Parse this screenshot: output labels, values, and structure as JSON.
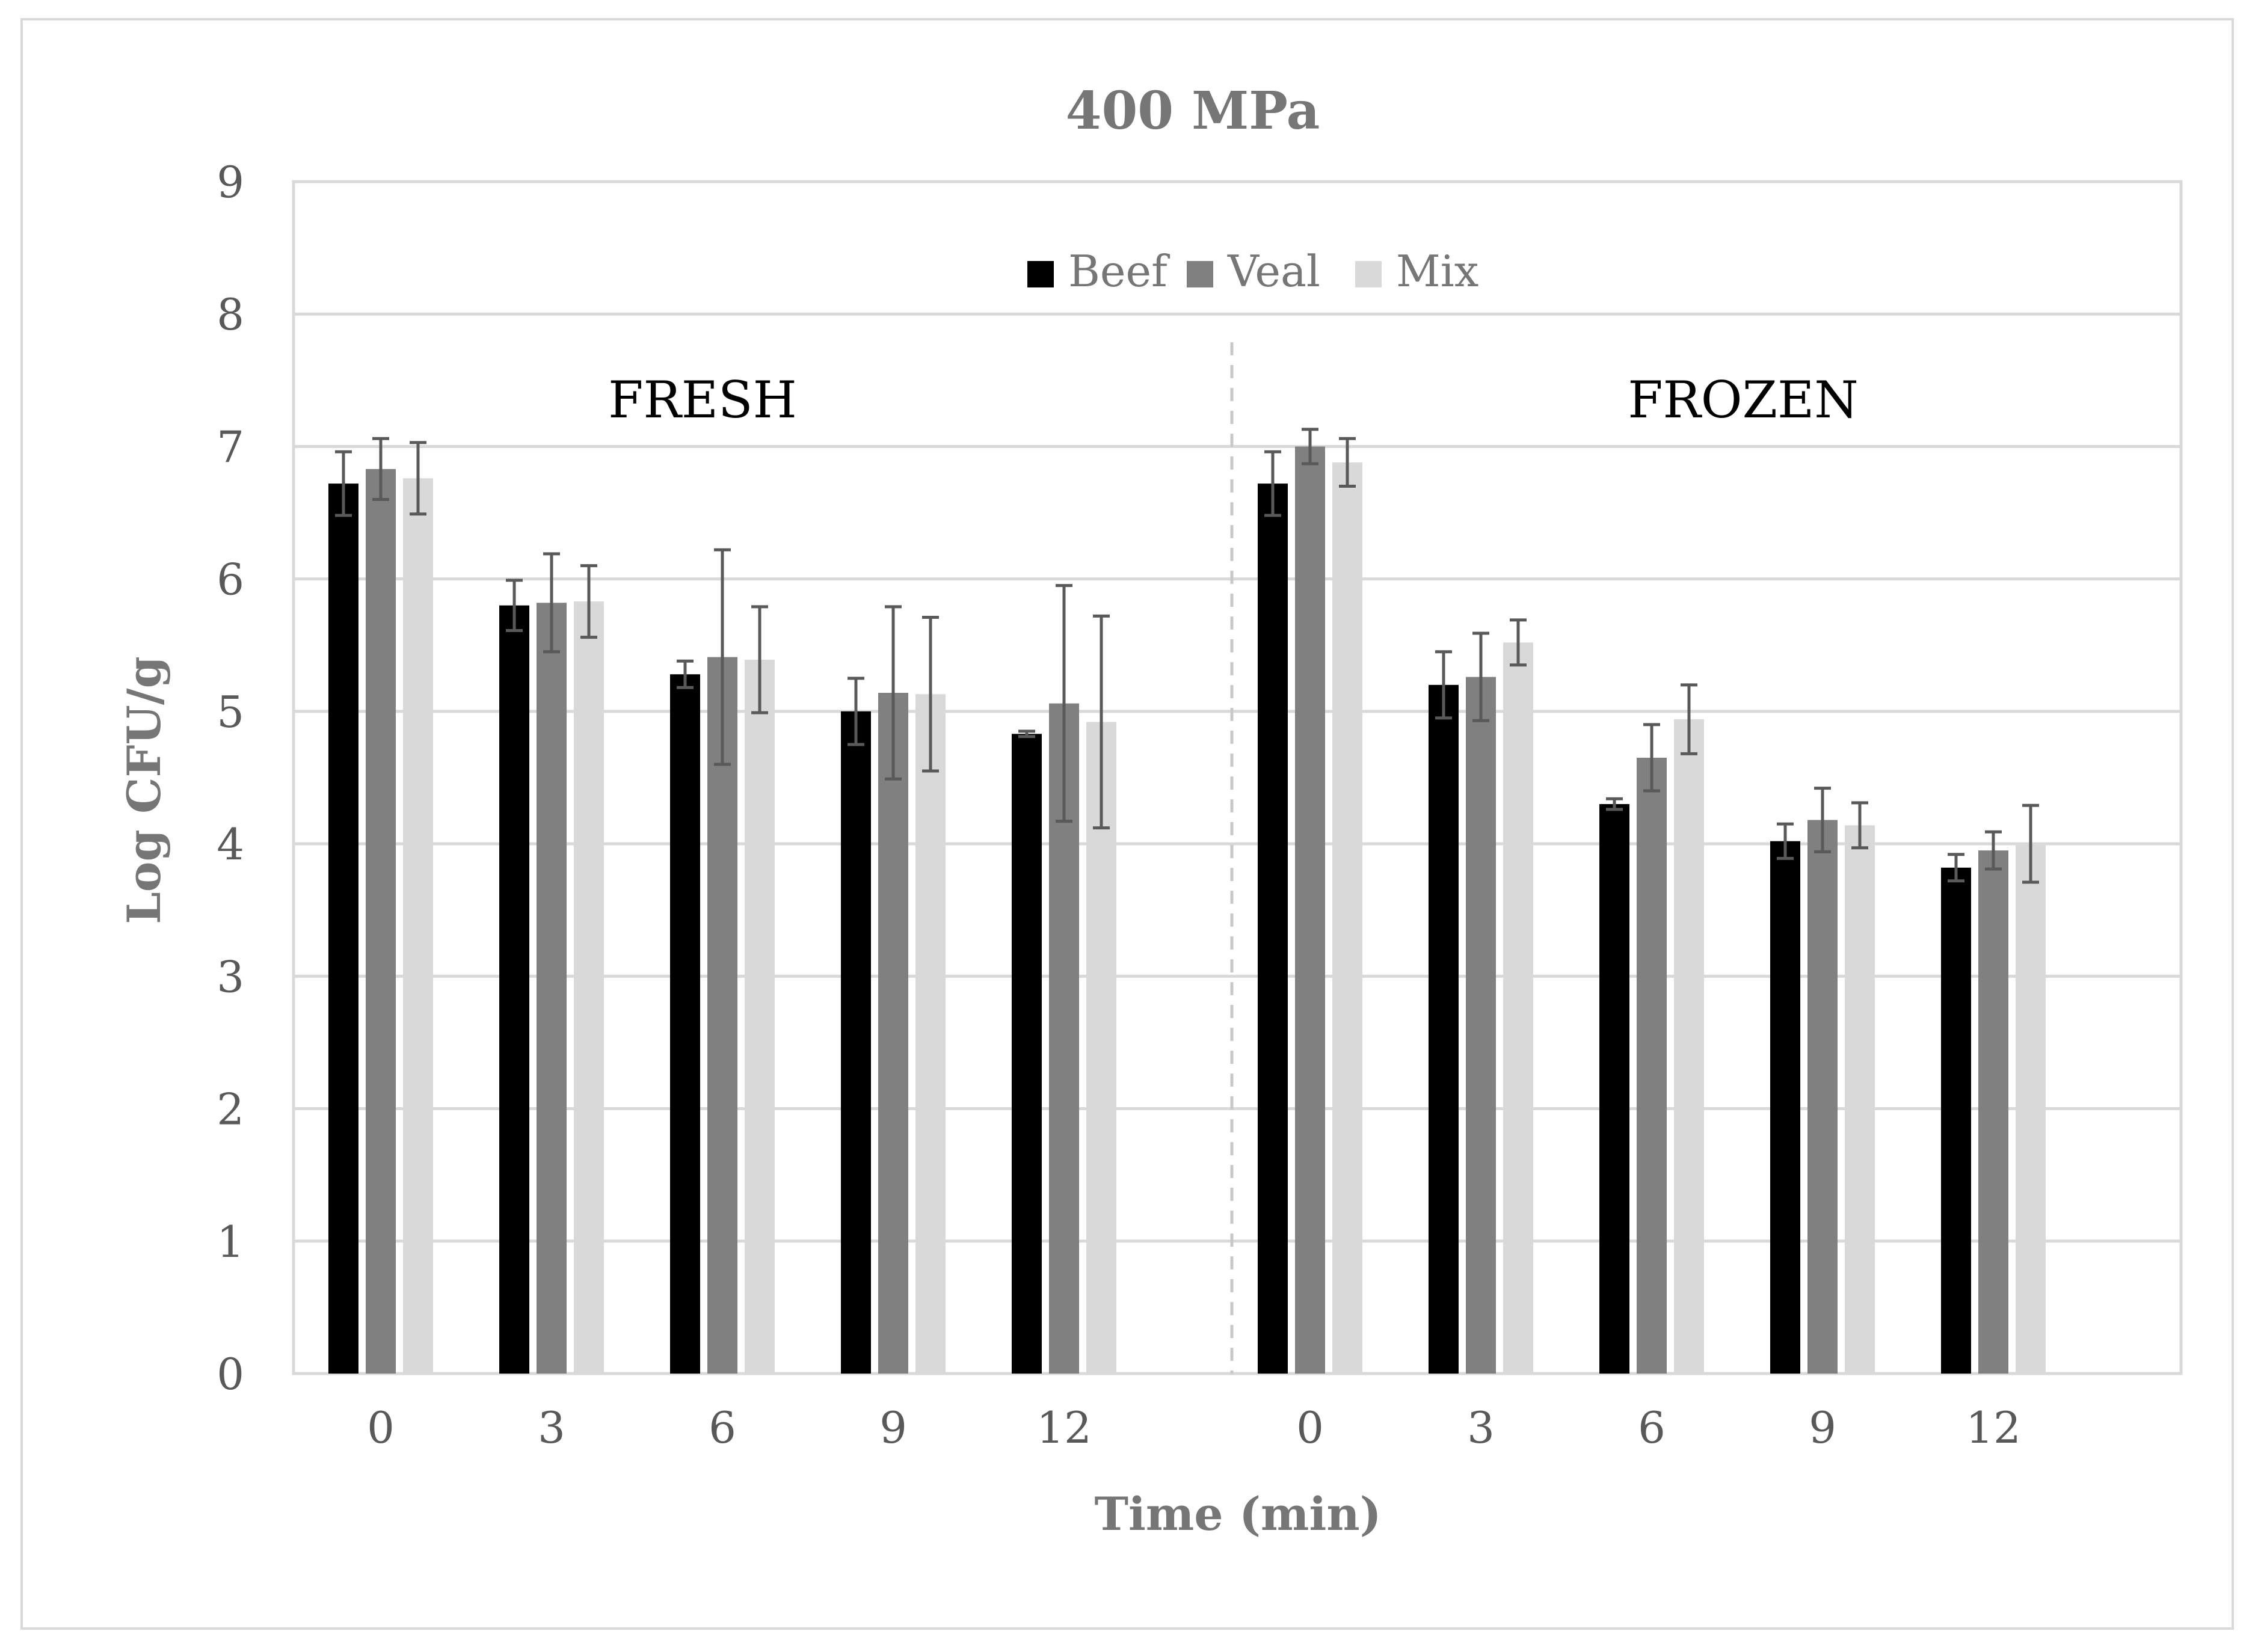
{
  "chart_data": {
    "type": "bar",
    "title": "400 MPa",
    "xlabel": "Time (min)",
    "ylabel": "Log CFU/g",
    "ylim": [
      0,
      9
    ],
    "yticks": [
      "0",
      "1",
      "2",
      "3",
      "4",
      "5",
      "6",
      "7",
      "8",
      "9"
    ],
    "grid": true,
    "legend_position": "top-center",
    "groups": [
      {
        "label": "FRESH",
        "categories": [
          "0",
          "3",
          "6",
          "9",
          "12"
        ],
        "series": [
          {
            "name": "Beef",
            "values": [
              6.72,
              5.8,
              5.28,
              5.0,
              4.83
            ],
            "errors": [
              0.24,
              0.19,
              0.1,
              0.25,
              0.02
            ]
          },
          {
            "name": "Veal",
            "values": [
              6.83,
              5.82,
              5.41,
              5.14,
              5.06
            ],
            "errors": [
              0.23,
              0.37,
              0.81,
              0.65,
              0.89
            ]
          },
          {
            "name": "Mix",
            "values": [
              6.76,
              5.83,
              5.39,
              5.13,
              4.92
            ],
            "errors": [
              0.27,
              0.27,
              0.4,
              0.58,
              0.8
            ]
          }
        ]
      },
      {
        "label": "FROZEN",
        "categories": [
          "0",
          "3",
          "6",
          "9",
          "12"
        ],
        "series": [
          {
            "name": "Beef",
            "values": [
              6.72,
              5.2,
              4.3,
              4.02,
              3.82
            ],
            "errors": [
              0.24,
              0.25,
              0.04,
              0.13,
              0.1
            ]
          },
          {
            "name": "Veal",
            "values": [
              7.0,
              5.26,
              4.65,
              4.18,
              3.95
            ],
            "errors": [
              0.13,
              0.33,
              0.25,
              0.24,
              0.14
            ]
          },
          {
            "name": "Mix",
            "values": [
              6.88,
              5.52,
              4.94,
              4.14,
              4.0
            ],
            "errors": [
              0.18,
              0.17,
              0.26,
              0.17,
              0.29
            ]
          }
        ]
      }
    ],
    "colors": {
      "Beef": "#000000",
      "Veal": "#808080",
      "Mix": "#d9d9d9"
    }
  }
}
